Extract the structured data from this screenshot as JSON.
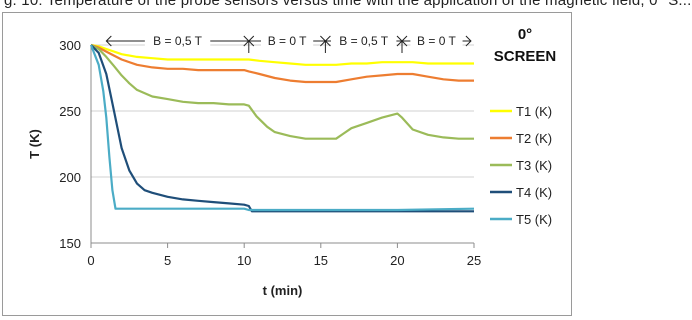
{
  "caption_fragment": "g. 10: Temperature of the probe sensors versus time with the application of the magnetic field, 0° S...",
  "chart_data": {
    "type": "line",
    "title": "0°\nSCREEN",
    "title_lines": [
      "0°",
      "SCREEN"
    ],
    "xlabel": "t (min)",
    "ylabel": "T (K)",
    "xlim": [
      0,
      25
    ],
    "ylim": [
      150,
      300
    ],
    "xticks": [
      0,
      5,
      10,
      15,
      20,
      25
    ],
    "yticks": [
      150,
      200,
      250,
      300
    ],
    "grid": true,
    "legend_position": "right",
    "field_segments": [
      {
        "label": "B = 0,5 T",
        "from": 1,
        "to": 10.3
      },
      {
        "label": "B = 0 T",
        "from": 10.3,
        "to": 15.3
      },
      {
        "label": "B = 0,5 T",
        "from": 15.3,
        "to": 20.3
      },
      {
        "label": "B = 0 T",
        "from": 20.3,
        "to": 24.8
      }
    ],
    "series": [
      {
        "name": "T1 (K)",
        "color": "#ffff00",
        "x": [
          0,
          0.5,
          1,
          1.5,
          2,
          3,
          4,
          5,
          6,
          7,
          8,
          9,
          10,
          10.3,
          11,
          12,
          13,
          14,
          15,
          16,
          17,
          18,
          19,
          20,
          21,
          22,
          23,
          24,
          25
        ],
        "y": [
          300,
          299,
          297,
          295,
          293,
          291,
          290,
          289,
          289,
          289,
          289,
          289,
          289,
          289,
          288,
          287,
          286,
          285,
          285,
          285,
          286,
          286,
          287,
          287,
          287,
          286,
          286,
          286,
          286
        ]
      },
      {
        "name": "T2 (K)",
        "color": "#ed7d31",
        "x": [
          0,
          0.5,
          1,
          1.5,
          2,
          3,
          4,
          5,
          6,
          7,
          8,
          9,
          10,
          10.3,
          11,
          12,
          13,
          14,
          15,
          16,
          17,
          18,
          19,
          20,
          21,
          22,
          23,
          24,
          25
        ],
        "y": [
          300,
          298,
          295,
          292,
          289,
          285,
          283,
          282,
          282,
          281,
          281,
          281,
          281,
          280,
          278,
          275,
          273,
          272,
          272,
          272,
          274,
          276,
          277,
          278,
          278,
          276,
          274,
          273,
          273
        ]
      },
      {
        "name": "T3 (K)",
        "color": "#9bbb59",
        "x": [
          0,
          0.5,
          1,
          1.5,
          2,
          2.5,
          3,
          4,
          5,
          6,
          7,
          8,
          9,
          10,
          10.3,
          10.8,
          11.5,
          12,
          13,
          14,
          15,
          16,
          16.5,
          17,
          18,
          19,
          20,
          20.3,
          21,
          22,
          23,
          24,
          25
        ],
        "y": [
          300,
          297,
          291,
          284,
          277,
          271,
          266,
          261,
          259,
          257,
          256,
          256,
          255,
          255,
          254,
          246,
          238,
          234,
          231,
          229,
          229,
          229,
          233,
          237,
          241,
          245,
          248,
          245,
          236,
          232,
          230,
          229,
          229
        ]
      },
      {
        "name": "T4 (K)",
        "color": "#1f4e79",
        "x": [
          0,
          0.5,
          1,
          1.5,
          2,
          2.5,
          3,
          3.5,
          4,
          5,
          6,
          7,
          8,
          9,
          10,
          10.3,
          10.5,
          12,
          14,
          16,
          18,
          20,
          22,
          24,
          25
        ],
        "y": [
          300,
          294,
          278,
          250,
          222,
          205,
          195,
          190,
          188,
          185,
          183,
          182,
          181,
          180,
          179,
          178,
          174,
          174,
          174,
          174,
          174,
          174,
          174,
          174,
          174
        ]
      },
      {
        "name": "T5 (K)",
        "color": "#4bacc6",
        "x": [
          0,
          0.5,
          0.8,
          1,
          1.2,
          1.4,
          1.6,
          2,
          3,
          5,
          10,
          10.3,
          12,
          15,
          20,
          25
        ],
        "y": [
          300,
          285,
          265,
          245,
          215,
          190,
          176,
          176,
          176,
          176,
          176,
          175,
          175,
          175,
          175,
          176
        ]
      }
    ]
  }
}
